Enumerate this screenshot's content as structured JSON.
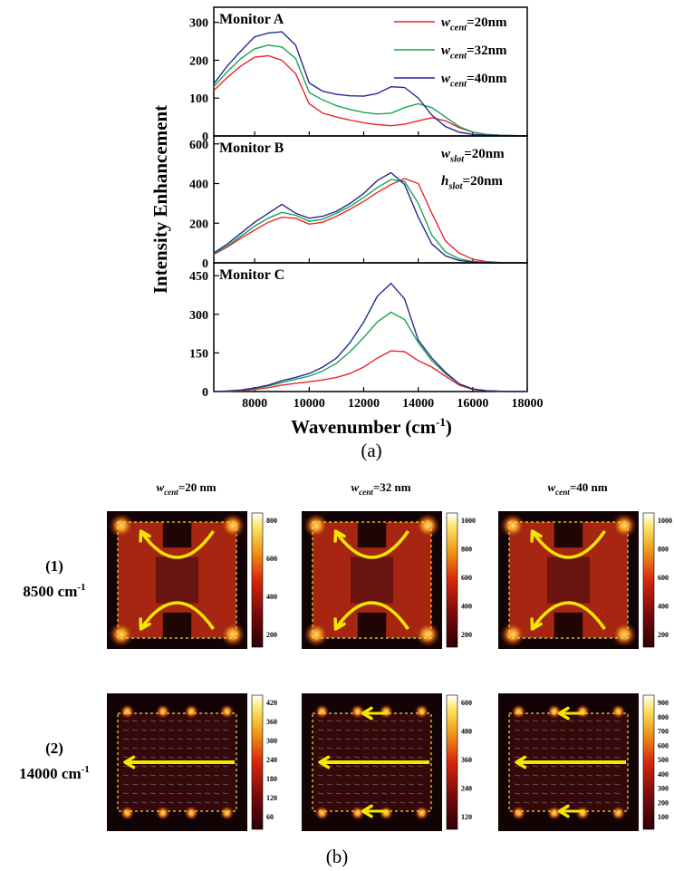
{
  "chart_data": {
    "type": "line",
    "title": "",
    "panel_caption": "(a)",
    "xlabel_main": "Wavenumber (cm",
    "xlabel_sup": "-1",
    "xlabel_tail": ")",
    "ylabel": "Intensity Enhancement",
    "xlim": [
      6500,
      18000
    ],
    "xticks": [
      8000,
      10000,
      12000,
      14000,
      16000,
      18000
    ],
    "legend": {
      "placement": "top-right",
      "entries": [
        {
          "pre": "w",
          "sub": "cent",
          "post": "=20nm"
        },
        {
          "pre": "w",
          "sub": "cent",
          "post": "=32nm"
        },
        {
          "pre": "w",
          "sub": "cent",
          "post": "=40nm"
        }
      ]
    },
    "slot_labels": [
      {
        "pre": "w",
        "sub": "slot",
        "post": "=20nm"
      },
      {
        "pre": "h",
        "sub": "slot",
        "post": "=20nm"
      }
    ],
    "series_colors": [
      "#e8262b",
      "#1aa351",
      "#252990"
    ],
    "panels": [
      {
        "label": "Monitor A",
        "ylim": [
          0,
          340
        ],
        "yticks": [
          0,
          100,
          200,
          300
        ],
        "series": [
          {
            "x": [
              6500,
              7000,
              7500,
              8000,
              8500,
              9000,
              9500,
              10000,
              10500,
              11000,
              11500,
              12000,
              12500,
              13000,
              13500,
              14000,
              14500,
              15000,
              15500,
              16000,
              16500,
              17000,
              17500,
              18000
            ],
            "y": [
              120,
              155,
              185,
              208,
              212,
              200,
              165,
              85,
              60,
              50,
              42,
              35,
              30,
              27,
              31,
              40,
              48,
              40,
              22,
              10,
              4,
              2,
              1,
              0
            ]
          },
          {
            "x": [
              6500,
              7000,
              7500,
              8000,
              8500,
              9000,
              9500,
              10000,
              10500,
              11000,
              11500,
              12000,
              12500,
              13000,
              13500,
              14000,
              14500,
              15000,
              15500,
              16000,
              16500,
              17000,
              17500,
              18000
            ],
            "y": [
              130,
              170,
              205,
              230,
              240,
              235,
              205,
              115,
              95,
              80,
              70,
              62,
              58,
              60,
              75,
              85,
              75,
              50,
              25,
              10,
              4,
              2,
              1,
              0
            ]
          },
          {
            "x": [
              6500,
              7000,
              7500,
              8000,
              8500,
              9000,
              9500,
              10000,
              10500,
              11000,
              11500,
              12000,
              12500,
              13000,
              13500,
              14000,
              14500,
              15000,
              15500,
              16000,
              16500,
              17000,
              17500,
              18000
            ],
            "y": [
              138,
              185,
              225,
              262,
              272,
              275,
              240,
              140,
              118,
              110,
              106,
              105,
              112,
              130,
              128,
              100,
              55,
              25,
              10,
              4,
              2,
              1,
              0,
              0
            ]
          }
        ]
      },
      {
        "label": "Monitor B",
        "ylim": [
          0,
          640
        ],
        "yticks": [
          0,
          200,
          400,
          600
        ],
        "series": [
          {
            "x": [
              6500,
              7000,
              7500,
              8000,
              8500,
              9000,
              9500,
              10000,
              10500,
              11000,
              11500,
              12000,
              12500,
              13000,
              13500,
              14000,
              14500,
              15000,
              15500,
              16000,
              16500,
              17000,
              17500,
              18000
            ],
            "y": [
              42,
              80,
              125,
              165,
              205,
              230,
              225,
              195,
              205,
              235,
              270,
              310,
              355,
              395,
              425,
              400,
              250,
              110,
              50,
              18,
              6,
              2,
              1,
              0
            ]
          },
          {
            "x": [
              6500,
              7000,
              7500,
              8000,
              8500,
              9000,
              9500,
              10000,
              10500,
              11000,
              11500,
              12000,
              12500,
              13000,
              13500,
              14000,
              14500,
              15000,
              15500,
              16000,
              16500,
              17000,
              17500,
              18000
            ],
            "y": [
              45,
              85,
              135,
              185,
              225,
              255,
              240,
              210,
              220,
              250,
              285,
              330,
              380,
              420,
              410,
              300,
              140,
              55,
              20,
              7,
              2,
              1,
              0,
              0
            ]
          },
          {
            "x": [
              6500,
              7000,
              7500,
              8000,
              8500,
              9000,
              9500,
              10000,
              10500,
              11000,
              11500,
              12000,
              12500,
              13000,
              13500,
              14000,
              14500,
              15000,
              15500,
              16000,
              16500,
              17000,
              17500,
              18000
            ],
            "y": [
              50,
              95,
              150,
              205,
              250,
              295,
              250,
              225,
              235,
              260,
              300,
              350,
              415,
              455,
              395,
              230,
              95,
              35,
              12,
              4,
              1,
              0,
              0,
              0
            ]
          }
        ]
      },
      {
        "label": "Monitor C",
        "ylim": [
          0,
          500
        ],
        "yticks": [
          0,
          150,
          300,
          450
        ],
        "series": [
          {
            "x": [
              6500,
              7000,
              7500,
              8000,
              8500,
              9000,
              9500,
              10000,
              10500,
              11000,
              11500,
              12000,
              12500,
              13000,
              13500,
              14000,
              14500,
              15000,
              15500,
              16000,
              16500,
              17000,
              17500,
              18000
            ],
            "y": [
              0,
              1,
              3,
              8,
              15,
              25,
              32,
              38,
              45,
              55,
              70,
              95,
              130,
              158,
              155,
              120,
              95,
              60,
              25,
              8,
              3,
              1,
              0,
              0
            ]
          },
          {
            "x": [
              6500,
              7000,
              7500,
              8000,
              8500,
              9000,
              9500,
              10000,
              10500,
              11000,
              11500,
              12000,
              12500,
              13000,
              13500,
              14000,
              14500,
              15000,
              15500,
              16000,
              16500,
              17000,
              17500,
              18000
            ],
            "y": [
              0,
              2,
              5,
              12,
              22,
              35,
              48,
              60,
              80,
              110,
              155,
              210,
              270,
              308,
              280,
              190,
              120,
              70,
              30,
              10,
              3,
              1,
              0,
              0
            ]
          },
          {
            "x": [
              6500,
              7000,
              7500,
              8000,
              8500,
              9000,
              9500,
              10000,
              10500,
              11000,
              11500,
              12000,
              12500,
              13000,
              13500,
              14000,
              14500,
              15000,
              15500,
              16000,
              16500,
              17000,
              17500,
              18000
            ],
            "y": [
              0,
              2,
              6,
              14,
              25,
              42,
              55,
              70,
              95,
              130,
              190,
              270,
              370,
              420,
              360,
              200,
              130,
              75,
              30,
              10,
              3,
              1,
              0,
              0
            ]
          }
        ]
      }
    ]
  },
  "field_maps": {
    "panel_caption": "(b)",
    "columns": [
      {
        "pre": "w",
        "sub": "cent",
        "post": "=20 nm"
      },
      {
        "pre": "w",
        "sub": "cent",
        "post": "=32 nm"
      },
      {
        "pre": "w",
        "sub": "cent",
        "post": "=40 nm"
      }
    ],
    "rows": [
      {
        "index": "(1)",
        "value": "8500 cm",
        "sup": "-1"
      },
      {
        "index": "(2)",
        "value": "14000 cm",
        "sup": "-1"
      }
    ],
    "colorbars": [
      [
        [
          "800"
        ],
        [
          "600"
        ],
        [
          "400"
        ],
        [
          "200"
        ]
      ],
      [
        [
          "1000"
        ],
        [
          "800"
        ],
        [
          "600"
        ],
        [
          "400"
        ],
        [
          "200"
        ]
      ],
      [
        [
          "1000"
        ],
        [
          "800"
        ],
        [
          "600"
        ],
        [
          "400"
        ],
        [
          "200"
        ]
      ],
      [
        [
          "420"
        ],
        [
          "360"
        ],
        [
          "300"
        ],
        [
          "240"
        ],
        [
          "180"
        ],
        [
          "120"
        ],
        [
          "60"
        ]
      ],
      [
        [
          "600"
        ],
        [
          "480"
        ],
        [
          "360"
        ],
        [
          "240"
        ],
        [
          "120"
        ]
      ],
      [
        [
          "900"
        ],
        [
          "800"
        ],
        [
          "700"
        ],
        [
          "600"
        ],
        [
          "500"
        ],
        [
          "400"
        ],
        [
          "300"
        ],
        [
          "200"
        ],
        [
          "100"
        ]
      ]
    ],
    "arrow_color": "#f5e600"
  }
}
